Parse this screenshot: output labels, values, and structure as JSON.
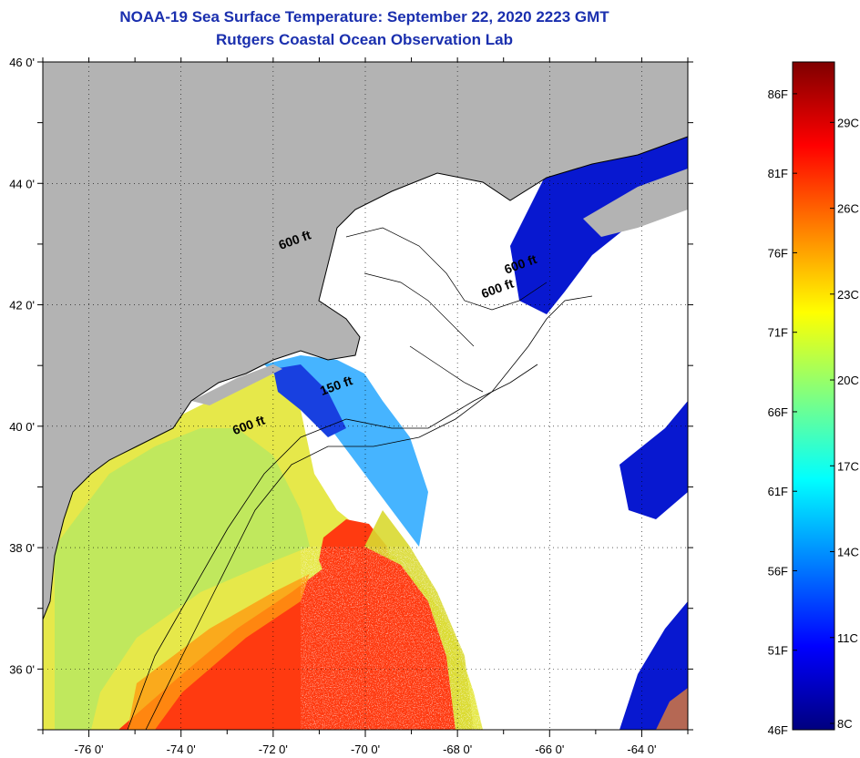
{
  "title_line1": "NOAA-19 Sea Surface Temperature:  September 22, 2020 2223 GMT",
  "title_line2": "Rutgers Coastal Ocean Observation Lab",
  "map": {
    "lon_range": [
      -77,
      -63
    ],
    "lat_range": [
      35,
      46
    ],
    "lon_ticks": [
      {
        "value": -76,
        "label": "-76 0'"
      },
      {
        "value": -74,
        "label": "-74 0'"
      },
      {
        "value": -72,
        "label": "-72 0'"
      },
      {
        "value": -70,
        "label": "-70 0'"
      },
      {
        "value": -68,
        "label": "-68 0'"
      },
      {
        "value": -66,
        "label": "-66 0'"
      },
      {
        "value": -64,
        "label": "-64 0'"
      }
    ],
    "lat_ticks": [
      {
        "value": 46,
        "label": "46 0'"
      },
      {
        "value": 44,
        "label": "44 0'"
      },
      {
        "value": 42,
        "label": "42 0'"
      },
      {
        "value": 40,
        "label": "40 0'"
      },
      {
        "value": 38,
        "label": "38 0'"
      },
      {
        "value": 36,
        "label": "36 0'"
      }
    ],
    "contour_labels": [
      {
        "text": "600 ft",
        "lon": -72.5,
        "lat": 39.95
      },
      {
        "text": "150 ft",
        "lon": -70.6,
        "lat": 40.6
      },
      {
        "text": "600 ft",
        "lon": -71.5,
        "lat": 43.0
      },
      {
        "text": "600 ft",
        "lon": -66.6,
        "lat": 42.6
      },
      {
        "text": "600 ft",
        "lon": -67.1,
        "lat": 42.2
      }
    ],
    "colors": {
      "land": "#b3b3b3",
      "cloud": "#ffffff",
      "coastline": "#000000"
    }
  },
  "colorbar": {
    "range_f": [
      46,
      88
    ],
    "fahrenheit_ticks": [
      {
        "value": 86,
        "label": "86F"
      },
      {
        "value": 81,
        "label": "81F"
      },
      {
        "value": 76,
        "label": "76F"
      },
      {
        "value": 71,
        "label": "71F"
      },
      {
        "value": 66,
        "label": "66F"
      },
      {
        "value": 61,
        "label": "61F"
      },
      {
        "value": 56,
        "label": "56F"
      },
      {
        "value": 51,
        "label": "51F"
      },
      {
        "value": 46,
        "label": "46F"
      }
    ],
    "celsius_ticks": [
      {
        "value": 29,
        "label": "29C"
      },
      {
        "value": 26,
        "label": "26C"
      },
      {
        "value": 23,
        "label": "23C"
      },
      {
        "value": 20,
        "label": "20C"
      },
      {
        "value": 17,
        "label": "17C"
      },
      {
        "value": 14,
        "label": "14C"
      },
      {
        "value": 11,
        "label": "11C"
      },
      {
        "value": 8,
        "label": "8C"
      }
    ],
    "gradient_stops": [
      "#00007f",
      "#0000ff",
      "#0080ff",
      "#00ffff",
      "#80ff80",
      "#ffff00",
      "#ff8000",
      "#ff0000",
      "#7f0000"
    ]
  }
}
